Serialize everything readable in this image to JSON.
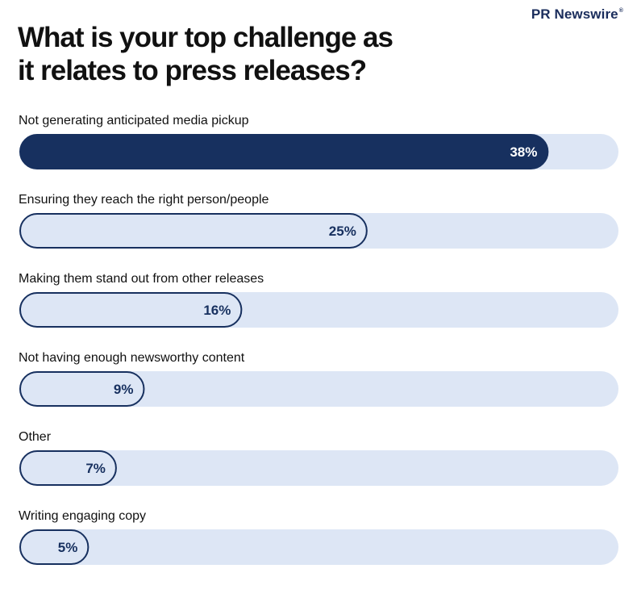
{
  "brand": "PR Newswire",
  "brand_mark": "®",
  "title_line1": "What is your top challenge as",
  "title_line2": "it relates to press releases?",
  "colors": {
    "track": "#dde6f5",
    "bar_highlight": "#17305f",
    "bar_default": "#dde6f5",
    "bar_outline": "#17305f",
    "label_on_dark": "#ffffff",
    "label_on_light": "#17305f"
  },
  "chart_data": {
    "type": "bar",
    "orientation": "horizontal",
    "categories": [
      "Not generating anticipated media pickup",
      "Ensuring they reach the right person/people",
      "Making them stand out from other releases",
      "Not having enough newsworthy content",
      "Other",
      "Writing engaging copy"
    ],
    "values": [
      38,
      25,
      16,
      9,
      7,
      5
    ],
    "value_labels": [
      "38%",
      "25%",
      "16%",
      "9%",
      "7%",
      "5%"
    ],
    "unit": "%",
    "xlim": [
      0,
      44
    ],
    "highlight_index": 0,
    "grid": false,
    "legend": "none"
  }
}
